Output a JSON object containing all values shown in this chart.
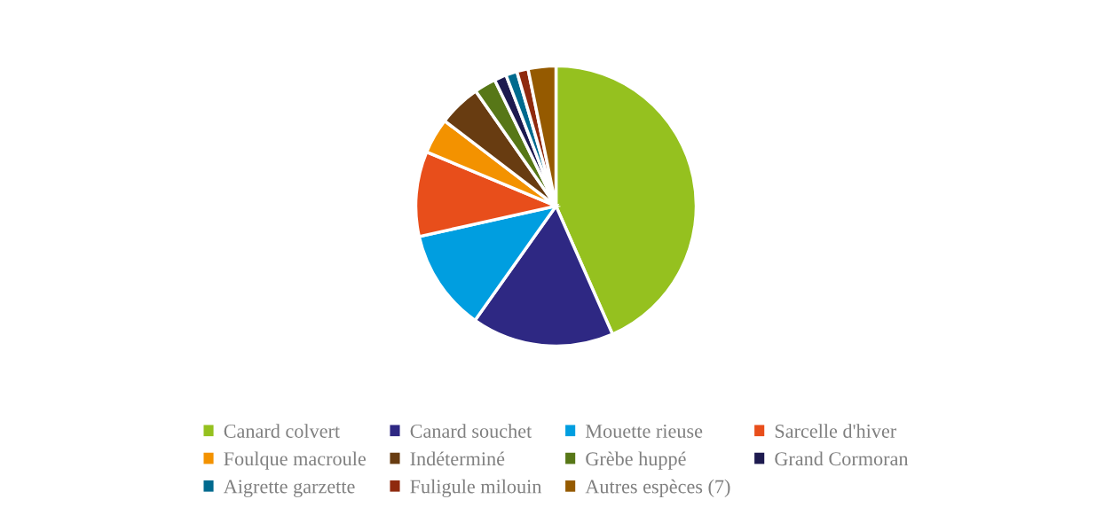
{
  "chart_data": {
    "type": "pie",
    "categories": [
      "Canard colvert",
      "Canard souchet",
      "Mouette rieuse",
      "Sarcelle d'hiver",
      "Foulque macroule",
      "Indéterminé",
      "Grèbe huppé",
      "Grand Cormoran",
      "Aigrette garzette",
      "Fuligule milouin",
      "Autres espèces (7)"
    ],
    "values": [
      43.4,
      16.4,
      11.7,
      9.8,
      4.1,
      4.9,
      2.5,
      1.4,
      1.3,
      1.3,
      3.2
    ],
    "colors": [
      "#95c11f",
      "#2e2883",
      "#009ee0",
      "#e84e1b",
      "#f39200",
      "#683c11",
      "#577717",
      "#1d1a4f",
      "#006a8e",
      "#8f2a0e",
      "#955a00"
    ],
    "legend": "bottom"
  }
}
